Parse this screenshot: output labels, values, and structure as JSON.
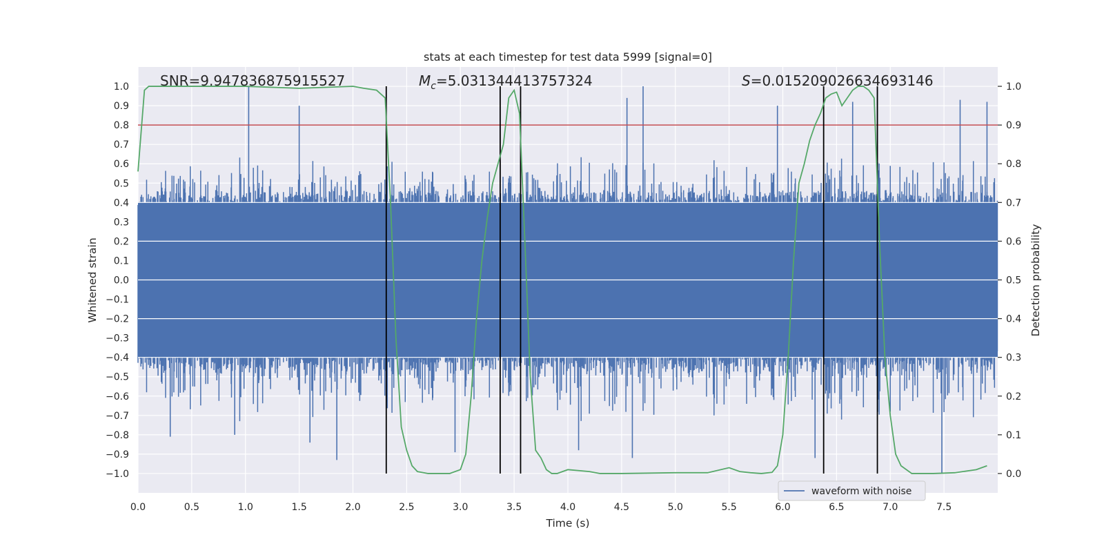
{
  "chart_data": {
    "type": "line",
    "title": "stats at each timestep for test data 5999 [signal=0]",
    "xlabel": "Time (s)",
    "ylabel_left": "Whitened strain",
    "ylabel_right": "Detection probability",
    "xlim": [
      0.0,
      8.0
    ],
    "ylim_left": [
      -1.1,
      1.1
    ],
    "ylim_right": [
      -0.05,
      1.05
    ],
    "xticks": [
      "0.0",
      "0.5",
      "1.0",
      "1.5",
      "2.0",
      "2.5",
      "3.0",
      "3.5",
      "4.0",
      "4.5",
      "5.0",
      "5.5",
      "6.0",
      "6.5",
      "7.0",
      "7.5"
    ],
    "xtick_values": [
      0.0,
      0.5,
      1.0,
      1.5,
      2.0,
      2.5,
      3.0,
      3.5,
      4.0,
      4.5,
      5.0,
      5.5,
      6.0,
      6.5,
      7.0,
      7.5
    ],
    "yticks_left": [
      "1.0",
      "0.9",
      "0.8",
      "0.7",
      "0.6",
      "0.5",
      "0.4",
      "0.3",
      "0.2",
      "0.1",
      "0.0",
      "−0.1",
      "−0.2",
      "−0.3",
      "−0.4",
      "−0.5",
      "−0.6",
      "−0.7",
      "−0.8",
      "−0.9",
      "−1.0"
    ],
    "ytick_values_left": [
      1.0,
      0.9,
      0.8,
      0.7,
      0.6,
      0.5,
      0.4,
      0.3,
      0.2,
      0.1,
      0.0,
      -0.1,
      -0.2,
      -0.3,
      -0.4,
      -0.5,
      -0.6,
      -0.7,
      -0.8,
      -0.9,
      -1.0
    ],
    "yticks_right": [
      "1.0",
      "0.9",
      "0.8",
      "0.7",
      "0.6",
      "0.5",
      "0.4",
      "0.3",
      "0.2",
      "0.1",
      "0.0"
    ],
    "ytick_values_right": [
      1.0,
      0.9,
      0.8,
      0.7,
      0.6,
      0.5,
      0.4,
      0.3,
      0.2,
      0.1,
      0.0
    ],
    "threshold": {
      "value": 0.9,
      "axis": "right",
      "color": "#c44e52"
    },
    "event_markers": {
      "x": [
        2.31,
        3.37,
        3.56,
        6.38,
        6.88
      ],
      "y_range": [
        -1.0,
        1.0
      ],
      "color": "#000000"
    },
    "annotations": {
      "snr": "SNR=9.947836875915527",
      "mc_symbol": "M",
      "mc_sub": "c",
      "mc_value": "=5.031344413757324",
      "s_symbol": "S",
      "s_value": "=0.015209026634693146"
    },
    "series": [
      {
        "name": "waveform with noise",
        "axis": "left",
        "color": "#4c72b0",
        "kind": "noise-waveform",
        "typical_band": [
          -0.45,
          0.45
        ],
        "spikes": [
          {
            "x": 1.03,
            "y": 1.0
          },
          {
            "x": 4.7,
            "y": 1.0
          },
          {
            "x": 6.88,
            "y": 1.0
          },
          {
            "x": 7.65,
            "y": 0.93
          },
          {
            "x": 7.9,
            "y": 0.92
          },
          {
            "x": 1.5,
            "y": 0.9
          },
          {
            "x": 4.55,
            "y": 0.94
          },
          {
            "x": 5.95,
            "y": 0.9
          },
          {
            "x": 6.65,
            "y": 0.92
          },
          {
            "x": 1.85,
            "y": -0.93
          },
          {
            "x": 2.95,
            "y": -0.89
          },
          {
            "x": 4.1,
            "y": -0.88
          },
          {
            "x": 4.6,
            "y": -0.92
          },
          {
            "x": 6.3,
            "y": -0.92
          },
          {
            "x": 7.48,
            "y": -1.0
          },
          {
            "x": 0.3,
            "y": -0.81
          },
          {
            "x": 0.9,
            "y": -0.8
          },
          {
            "x": 1.6,
            "y": -0.84
          }
        ]
      },
      {
        "name": "detection probability",
        "axis": "right",
        "color": "#55a868",
        "x": [
          0.0,
          0.06,
          0.1,
          0.2,
          0.5,
          1.0,
          1.5,
          2.0,
          2.1,
          2.22,
          2.3,
          2.35,
          2.4,
          2.45,
          2.5,
          2.55,
          2.6,
          2.7,
          2.9,
          3.0,
          3.05,
          3.1,
          3.15,
          3.2,
          3.25,
          3.3,
          3.35,
          3.4,
          3.45,
          3.5,
          3.55,
          3.6,
          3.65,
          3.7,
          3.75,
          3.8,
          3.85,
          3.9,
          4.0,
          4.2,
          4.3,
          4.5,
          5.0,
          5.3,
          5.5,
          5.6,
          5.7,
          5.8,
          5.9,
          5.95,
          6.0,
          6.05,
          6.1,
          6.15,
          6.2,
          6.25,
          6.3,
          6.35,
          6.4,
          6.45,
          6.5,
          6.55,
          6.6,
          6.65,
          6.7,
          6.75,
          6.8,
          6.85,
          6.9,
          6.95,
          7.0,
          7.05,
          7.1,
          7.2,
          7.4,
          7.6,
          7.8,
          7.9
        ],
        "y": [
          0.78,
          0.99,
          1.0,
          1.0,
          1.0,
          1.0,
          0.995,
          1.0,
          0.995,
          0.99,
          0.97,
          0.7,
          0.35,
          0.12,
          0.06,
          0.02,
          0.005,
          0.0,
          0.0,
          0.01,
          0.05,
          0.2,
          0.4,
          0.55,
          0.66,
          0.75,
          0.8,
          0.85,
          0.97,
          0.99,
          0.93,
          0.6,
          0.25,
          0.06,
          0.04,
          0.01,
          0.0,
          0.0,
          0.01,
          0.005,
          0.0,
          0.0,
          0.002,
          0.002,
          0.015,
          0.005,
          0.002,
          0.0,
          0.003,
          0.02,
          0.1,
          0.3,
          0.55,
          0.75,
          0.8,
          0.86,
          0.9,
          0.93,
          0.97,
          0.98,
          0.985,
          0.95,
          0.97,
          0.99,
          1.0,
          1.0,
          0.99,
          0.97,
          0.6,
          0.3,
          0.15,
          0.05,
          0.02,
          0.0,
          0.0,
          0.002,
          0.01,
          0.02
        ]
      }
    ],
    "legend": {
      "entries": [
        "waveform with noise"
      ],
      "placement": "lower-right"
    }
  }
}
